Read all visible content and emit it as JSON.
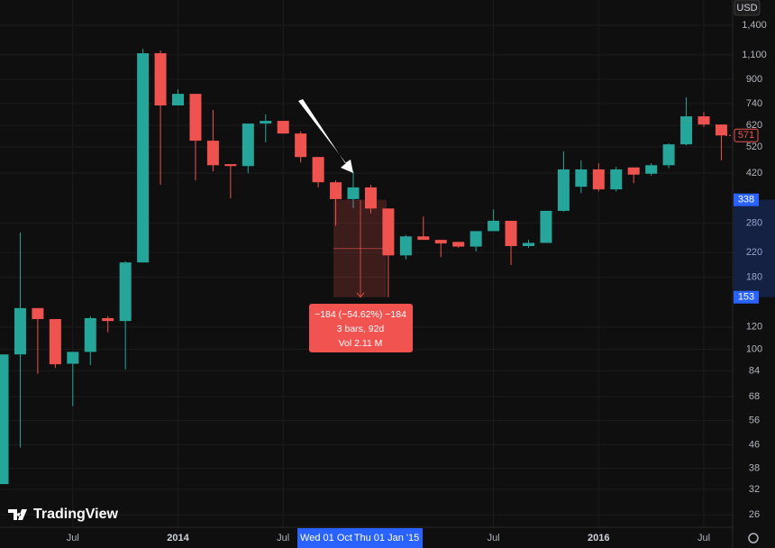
{
  "chart_data": {
    "type": "candlestick",
    "currency": "USD",
    "watermark": "TradingView",
    "log_scale": true,
    "grid": true,
    "up_color": "#26a69a",
    "down_color": "#ef5350",
    "categories": [
      null,
      null,
      null,
      null,
      "Jul",
      null,
      null,
      null,
      null,
      null,
      "2014",
      null,
      null,
      null,
      null,
      null,
      "Jul",
      null,
      null,
      null,
      null,
      null,
      null,
      null,
      null,
      null,
      null,
      null,
      "Jul",
      null,
      null,
      null,
      null,
      null,
      "2016",
      null,
      null,
      null,
      null,
      null,
      "Jul",
      null
    ],
    "open": [
      33.4,
      96,
      140,
      128,
      89,
      98,
      129,
      126,
      203,
      1115,
      729,
      801,
      547,
      452,
      445,
      629,
      643,
      580,
      479,
      390,
      340,
      374,
      315,
      215,
      251,
      244,
      240,
      231,
      262,
      285,
      232,
      238,
      309,
      376,
      433,
      368,
      440,
      418,
      448,
      531,
      667,
      624
    ],
    "high": [
      96,
      259,
      140,
      128,
      98,
      131,
      131,
      205,
      1155,
      1140,
      830,
      801,
      702,
      452,
      629,
      677,
      643,
      590,
      479,
      396,
      426,
      382,
      315,
      254,
      295,
      244,
      240,
      262,
      313,
      285,
      244,
      309,
      501,
      466,
      455,
      442,
      440,
      455,
      535,
      778,
      690,
      624
    ],
    "low": [
      33.4,
      45,
      82,
      86,
      63,
      88,
      115,
      85,
      203,
      382,
      729,
      396,
      426,
      342,
      420,
      540,
      580,
      458,
      374,
      274,
      316,
      303,
      153,
      208,
      244,
      212,
      229,
      222,
      262,
      199,
      229,
      238,
      307,
      357,
      362,
      362,
      387,
      412,
      437,
      527,
      612,
      466
    ],
    "close": [
      96,
      140,
      128,
      88.6,
      98,
      129,
      126,
      203,
      1115,
      729,
      801,
      547,
      448,
      445,
      629,
      643,
      580,
      479,
      390,
      340,
      374,
      315,
      215,
      251,
      244,
      237,
      231,
      262,
      285,
      232,
      238,
      309,
      433,
      433,
      368,
      433,
      415,
      448,
      531,
      667,
      624,
      571
    ],
    "ylim": [
      23.5,
      1720
    ],
    "yticks": [
      26,
      32,
      38,
      46,
      56,
      68,
      84,
      100,
      120,
      180,
      220,
      280,
      420,
      520,
      620,
      740,
      900,
      {
        "value": 1100,
        "label": "1,100"
      },
      {
        "value": 1400,
        "label": "1,400"
      }
    ],
    "measure": {
      "start_label": "Wed 01 Oct",
      "end_label": "Thu 01 Jan '15",
      "prices": [
        338,
        153
      ],
      "tooltip": [
        "−184 (−54.62%) −184",
        "3 bars, 92d",
        "Vol 2.11 M"
      ]
    }
  }
}
